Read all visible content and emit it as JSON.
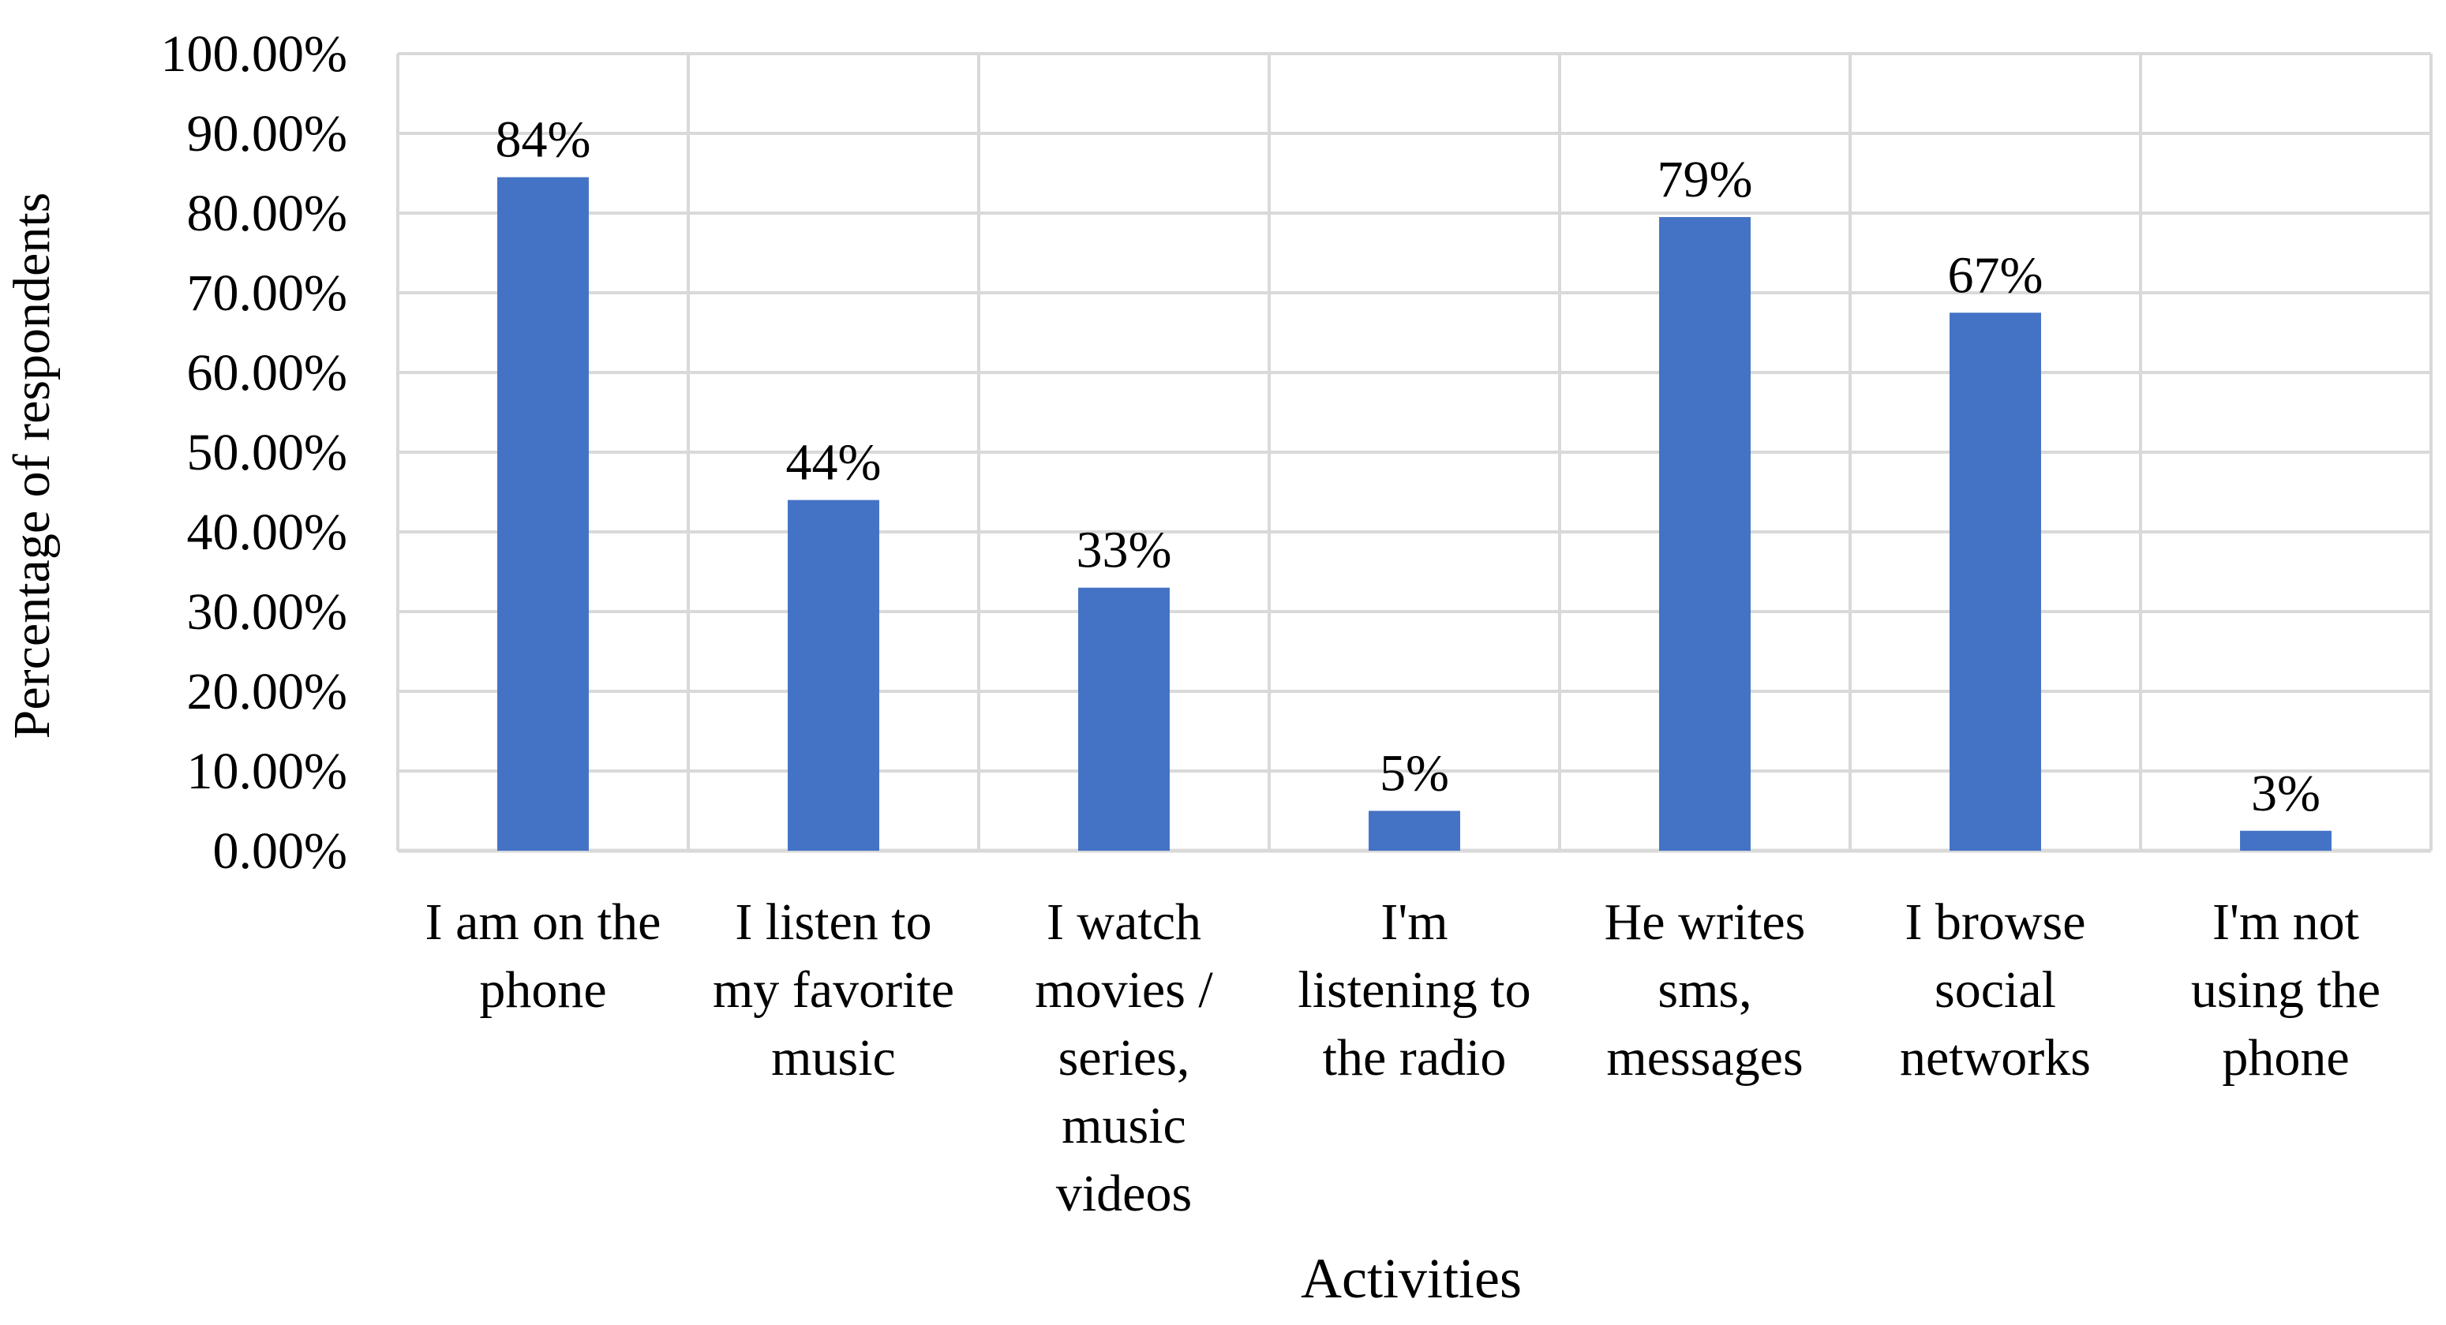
{
  "chart_data": {
    "type": "bar",
    "title": "",
    "xlabel": "Activities",
    "ylabel": "Percentage of respondents",
    "ylim": [
      0,
      100
    ],
    "ytick_step": 10,
    "ytick_labels": [
      "0.00%",
      "10.00%",
      "20.00%",
      "30.00%",
      "40.00%",
      "50.00%",
      "60.00%",
      "70.00%",
      "80.00%",
      "90.00%",
      "100.00%"
    ],
    "categories": [
      "I am on the phone",
      "I listen to my favorite music",
      "I watch movies / series, music videos",
      "I'm listening to the radio",
      "He writes sms, messages",
      "I browse social networks",
      "I'm not using the phone"
    ],
    "category_label_lines": [
      [
        "I am on the",
        "phone"
      ],
      [
        "I listen to",
        "my favorite",
        "music"
      ],
      [
        "I watch",
        "movies /",
        "series,",
        "music",
        "videos"
      ],
      [
        "I'm",
        "listening to",
        "the radio"
      ],
      [
        "He writes",
        "sms,",
        "messages"
      ],
      [
        "I browse",
        "social",
        "networks"
      ],
      [
        "I'm not",
        "using the",
        "phone"
      ]
    ],
    "values": [
      84.5,
      44.0,
      33.0,
      5.0,
      79.5,
      67.5,
      2.5
    ],
    "data_labels": [
      "84%",
      "44%",
      "33%",
      "5%",
      "79%",
      "67%",
      "3%"
    ],
    "grid": true,
    "grid_vertical": true,
    "legend": "none",
    "colors": {
      "bar": "#4472C4",
      "grid": "#D9D9D9",
      "text": "#000000",
      "background": "#FFFFFF"
    }
  }
}
